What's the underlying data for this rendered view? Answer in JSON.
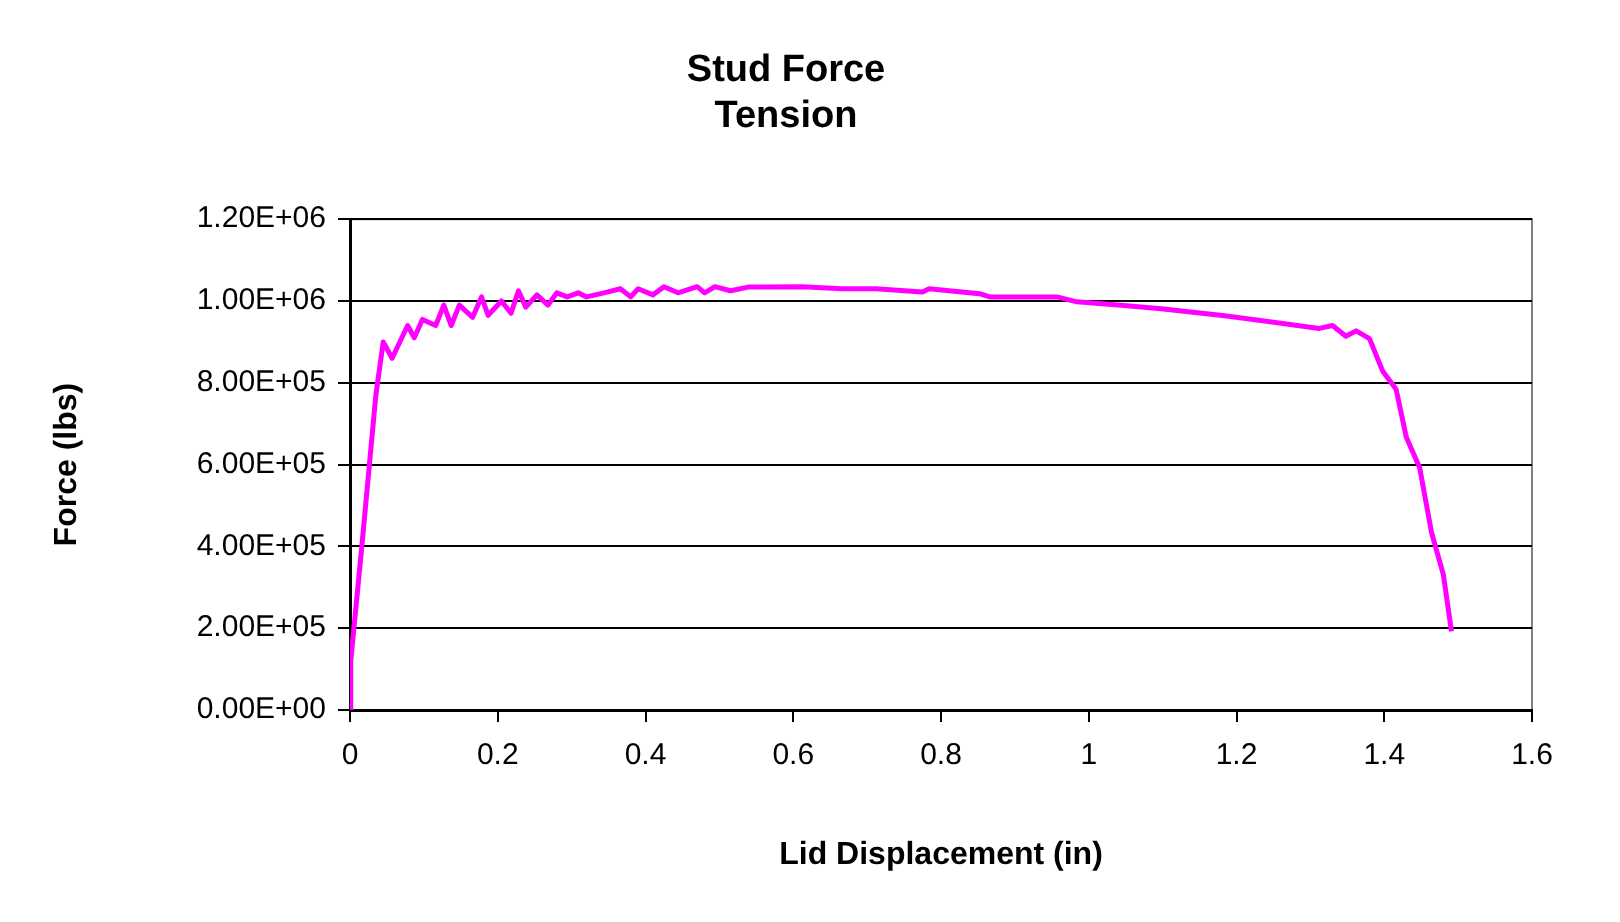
{
  "chart_data": {
    "type": "line",
    "title": "Stud Force\nTension",
    "xlabel": "Lid Displacement (in)",
    "ylabel": "Force (lbs)",
    "x": [
      0,
      0.001,
      0.016,
      0.035,
      0.045,
      0.057,
      0.078,
      0.087,
      0.098,
      0.116,
      0.127,
      0.137,
      0.148,
      0.166,
      0.178,
      0.187,
      0.205,
      0.218,
      0.228,
      0.238,
      0.253,
      0.268,
      0.28,
      0.294,
      0.309,
      0.32,
      0.344,
      0.366,
      0.38,
      0.39,
      0.41,
      0.425,
      0.444,
      0.47,
      0.48,
      0.494,
      0.515,
      0.539,
      0.612,
      0.666,
      0.712,
      0.775,
      0.784,
      0.852,
      0.866,
      0.957,
      0.984,
      1.048,
      1.098,
      1.184,
      1.312,
      1.33,
      1.348,
      1.362,
      1.38,
      1.398,
      1.416,
      1.43,
      1.448,
      1.464,
      1.48,
      1.491
    ],
    "series": [
      {
        "color": "#ff00ff",
        "values": [
          0,
          120000,
          400000,
          770000,
          900000,
          860000,
          940000,
          910000,
          955000,
          940000,
          990000,
          940000,
          990000,
          960000,
          1010000,
          965000,
          1000000,
          970000,
          1025000,
          985000,
          1015000,
          990000,
          1020000,
          1010000,
          1020000,
          1010000,
          1020000,
          1030000,
          1010000,
          1030000,
          1015000,
          1035000,
          1020000,
          1035000,
          1020000,
          1035000,
          1025000,
          1034000,
          1035000,
          1030000,
          1030000,
          1022000,
          1030000,
          1018000,
          1010000,
          1010000,
          998000,
          989000,
          981000,
          964000,
          933000,
          940000,
          914000,
          927000,
          908000,
          828000,
          784000,
          666000,
          592000,
          434000,
          331000,
          192000
        ]
      }
    ],
    "xlim": [
      0,
      1.6
    ],
    "xticks": [
      0,
      0.2,
      0.4,
      0.6,
      0.8,
      1,
      1.2,
      1.4,
      1.6
    ],
    "ylim": [
      0,
      1200000
    ],
    "yticks": [
      {
        "value": 0,
        "label": "0.00E+00"
      },
      {
        "value": 200000,
        "label": "2.00E+05"
      },
      {
        "value": 400000,
        "label": "4.00E+05"
      },
      {
        "value": 600000,
        "label": "6.00E+05"
      },
      {
        "value": 800000,
        "label": "8.00E+05"
      },
      {
        "value": 1000000,
        "label": "1.00E+06"
      },
      {
        "value": 1200000,
        "label": "1.20E+06"
      }
    ],
    "grid": "y",
    "legend": false,
    "marker": "none",
    "line_style": "solid"
  }
}
